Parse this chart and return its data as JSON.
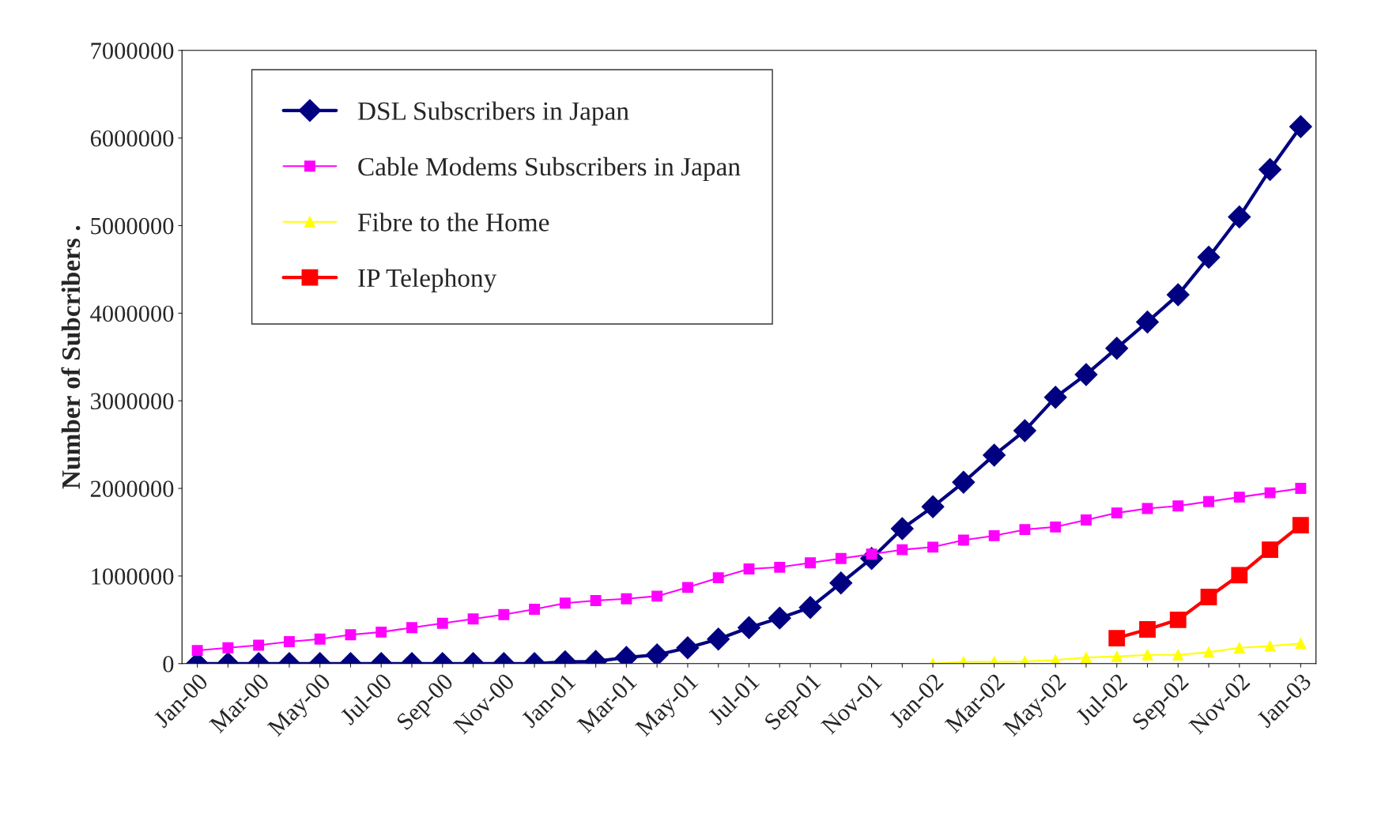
{
  "chart_data": {
    "type": "line",
    "ylabel": "Number of Subcribers .",
    "categories": [
      "Jan-00",
      null,
      "Mar-00",
      null,
      "May-00",
      null,
      "Jul-00",
      null,
      "Sep-00",
      null,
      "Nov-00",
      null,
      "Jan-01",
      null,
      "Mar-01",
      null,
      "May-01",
      null,
      "Jul-01",
      null,
      "Sep-01",
      null,
      "Nov-01",
      null,
      "Jan-02",
      null,
      "Mar-02",
      null,
      "May-02",
      null,
      "Jul-02",
      null,
      "Sep-02",
      null,
      "Nov-02",
      null,
      "Jan-03"
    ],
    "series": [
      {
        "name": "DSL Subscribers in Japan",
        "color": "#000080",
        "marker": "diamond",
        "values": [
          0,
          0,
          0,
          0,
          0,
          0,
          0,
          0,
          0,
          0,
          0,
          0,
          20000,
          25000,
          70000,
          100000,
          180000,
          280000,
          410000,
          520000,
          640000,
          920000,
          1200000,
          1540000,
          1790000,
          2070000,
          2380000,
          2660000,
          3040000,
          3300000,
          3600000,
          3900000,
          4210000,
          4640000,
          5100000,
          5640000,
          6130000
        ]
      },
      {
        "name": "Cable Modems Subscribers in Japan",
        "color": "#ff00ff",
        "marker": "square",
        "values": [
          150000,
          180000,
          210000,
          250000,
          280000,
          330000,
          360000,
          410000,
          460000,
          510000,
          560000,
          620000,
          690000,
          720000,
          740000,
          770000,
          870000,
          980000,
          1080000,
          1100000,
          1150000,
          1200000,
          1250000,
          1300000,
          1330000,
          1410000,
          1460000,
          1530000,
          1560000,
          1640000,
          1720000,
          1770000,
          1800000,
          1850000,
          1900000,
          1950000,
          2000000
        ]
      },
      {
        "name": "Fibre to the Home",
        "color": "#ffff00",
        "marker": "triangle",
        "values": [
          null,
          null,
          null,
          null,
          null,
          null,
          null,
          null,
          null,
          null,
          null,
          null,
          null,
          null,
          null,
          null,
          null,
          null,
          null,
          null,
          null,
          null,
          null,
          null,
          0,
          20000,
          20000,
          25000,
          40000,
          70000,
          80000,
          100000,
          100000,
          130000,
          180000,
          200000,
          230000
        ]
      },
      {
        "name": "IP Telephony",
        "color": "#ff0000",
        "marker": "square",
        "values": [
          null,
          null,
          null,
          null,
          null,
          null,
          null,
          null,
          null,
          null,
          null,
          null,
          null,
          null,
          null,
          null,
          null,
          null,
          null,
          null,
          null,
          null,
          null,
          null,
          null,
          null,
          null,
          null,
          null,
          null,
          290000,
          390000,
          500000,
          760000,
          1010000,
          1300000,
          1580000
        ]
      }
    ],
    "ylim": [
      0,
      7000000
    ],
    "yticks": [
      0,
      1000000,
      2000000,
      3000000,
      4000000,
      5000000,
      6000000,
      7000000
    ],
    "grid": false,
    "legend": "top left"
  }
}
